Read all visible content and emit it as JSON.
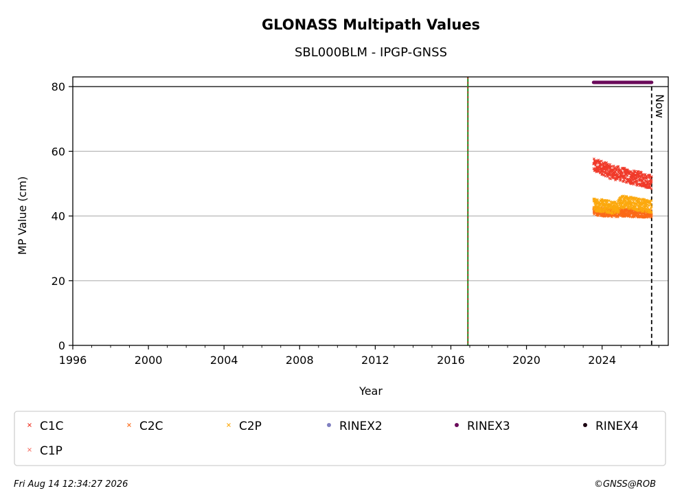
{
  "chart_data": {
    "type": "scatter",
    "title": "GLONASS Multipath Values",
    "subtitle": "SBL000BLM - IPGP-GNSS",
    "xlabel": "Year",
    "ylabel": "MP Value (cm)",
    "xlim": [
      1996,
      2027.5
    ],
    "ylim": [
      0,
      83
    ],
    "xticks": [
      "1996",
      "2000",
      "2004",
      "2008",
      "2012",
      "2016",
      "2020",
      "2024"
    ],
    "yticks": [
      "0",
      "20",
      "40",
      "60",
      "80"
    ],
    "grid": "horizontal",
    "threshold_line_y": 80,
    "event_line_x": 2016.9,
    "now_x": 2026.62,
    "now_label": "Now",
    "series": [
      {
        "name": "C1C",
        "color": "#f03a2a",
        "marker": "x",
        "x_range": [
          2023.55,
          2026.62
        ],
        "trend": [
          [
            2023.55,
            55.5
          ],
          [
            2024.0,
            55.0
          ],
          [
            2024.5,
            53.5
          ],
          [
            2025.0,
            53.0
          ],
          [
            2025.5,
            52.0
          ],
          [
            2026.0,
            51.5
          ],
          [
            2026.6,
            50.5
          ]
        ],
        "spread": 2.2
      },
      {
        "name": "C2C",
        "color": "#fb6a18",
        "marker": "x",
        "x_range": [
          2023.55,
          2026.62
        ],
        "trend": [
          [
            2023.55,
            41.5
          ],
          [
            2024.5,
            41.0
          ],
          [
            2025.5,
            41.0
          ],
          [
            2026.6,
            40.8
          ]
        ],
        "spread": 1.3
      },
      {
        "name": "C2P",
        "color": "#fca90e",
        "marker": "x",
        "x_range": [
          2023.55,
          2026.62
        ],
        "trend": [
          [
            2023.55,
            43.5
          ],
          [
            2024.8,
            42.5
          ],
          [
            2025.0,
            44.5
          ],
          [
            2025.5,
            44.0
          ],
          [
            2026.0,
            43.5
          ],
          [
            2026.6,
            43.0
          ]
        ],
        "spread": 2.0
      },
      {
        "name": "RINEX2",
        "color": "#7f7fc0",
        "marker": "dot",
        "values": []
      },
      {
        "name": "RINEX3",
        "color": "#6a0a5a",
        "marker": "dot",
        "x_range": [
          2023.55,
          2026.62
        ],
        "y": 81.3
      },
      {
        "name": "RINEX4",
        "color": "#1a0010",
        "marker": "dot",
        "values": []
      },
      {
        "name": "C1P",
        "color": "#f77a6e",
        "marker": "x",
        "values": []
      }
    ]
  },
  "footer": {
    "timestamp": "Fri Aug 14 12:34:27 2026",
    "copyright": "©GNSS@ROB"
  }
}
